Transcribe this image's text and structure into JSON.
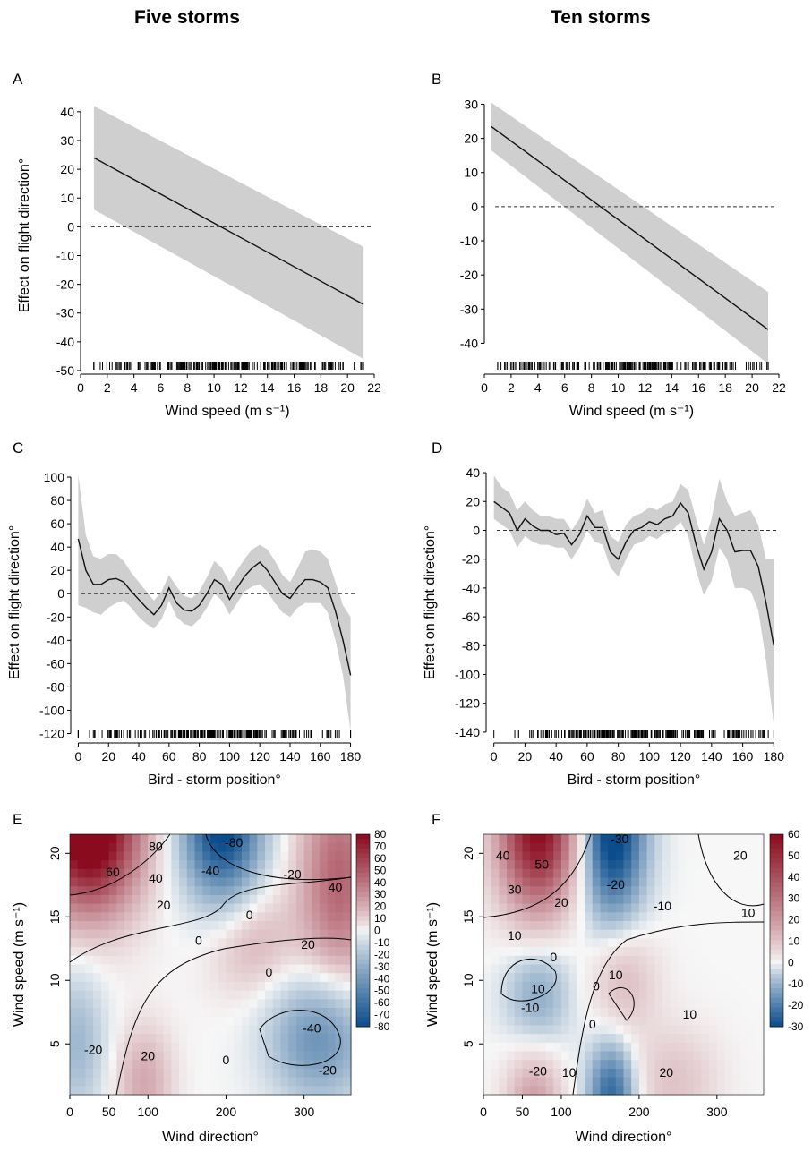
{
  "column_titles": [
    "Five storms",
    "Ten storms"
  ],
  "chart_data": [
    {
      "panel": "A",
      "type": "line",
      "xlabel": "Wind speed  (m s⁻¹)",
      "ylabel": "Effect on flight  direction°",
      "xlim": [
        0,
        22
      ],
      "ylim": [
        -50,
        44
      ],
      "xticks": [
        0,
        2,
        4,
        6,
        8,
        10,
        12,
        14,
        16,
        18,
        20,
        22
      ],
      "yticks": [
        -50,
        -40,
        -30,
        -20,
        -10,
        0,
        10,
        20,
        30,
        40
      ],
      "reference_line": 0,
      "series": [
        {
          "x": [
            1,
            21.2
          ],
          "y": [
            24,
            -27
          ],
          "lower": [
            6,
            -46
          ],
          "upper": [
            42,
            -7
          ]
        }
      ],
      "rug": {
        "range": [
          1,
          21.2
        ]
      }
    },
    {
      "panel": "B",
      "type": "line",
      "xlabel": "Wind speed  (m s⁻¹)",
      "ylabel": "",
      "xlim": [
        0,
        22
      ],
      "ylim": [
        -48,
        33
      ],
      "xticks": [
        0,
        2,
        4,
        6,
        8,
        10,
        12,
        14,
        16,
        18,
        20,
        22
      ],
      "yticks": [
        -40,
        -30,
        -20,
        -10,
        0,
        10,
        20,
        30
      ],
      "reference_line": 0,
      "series": [
        {
          "x": [
            0.5,
            21.2
          ],
          "y": [
            23.5,
            -36
          ],
          "lower": [
            16.5,
            -46
          ],
          "upper": [
            30.5,
            -25
          ]
        }
      ],
      "rug": {
        "range": [
          1,
          21.2
        ]
      }
    },
    {
      "panel": "C",
      "type": "line",
      "xlabel": "Bird - storm  position°",
      "ylabel": "Effect on flight  direction°",
      "xlim": [
        -5,
        185
      ],
      "ylim": [
        -125,
        110
      ],
      "xticks": [
        0,
        20,
        40,
        60,
        80,
        100,
        120,
        140,
        160,
        180
      ],
      "yticks": [
        -120,
        -100,
        -80,
        -60,
        -40,
        -20,
        0,
        20,
        40,
        60,
        80,
        100
      ],
      "reference_line": 0,
      "series": [
        {
          "x": [
            0,
            5,
            10,
            15,
            20,
            25,
            30,
            35,
            40,
            45,
            50,
            55,
            60,
            65,
            70,
            75,
            80,
            85,
            90,
            95,
            100,
            105,
            110,
            115,
            120,
            125,
            130,
            135,
            140,
            145,
            150,
            155,
            160,
            165,
            170,
            175,
            180
          ],
          "y": [
            47,
            20,
            8,
            8,
            12,
            13,
            10,
            2,
            -5,
            -12,
            -18,
            -10,
            5,
            -8,
            -14,
            -15,
            -10,
            0,
            12,
            8,
            -5,
            5,
            15,
            22,
            27,
            20,
            10,
            0,
            -4,
            5,
            12,
            12,
            10,
            5,
            -15,
            -40,
            -70
          ],
          "lower": [
            -10,
            -12,
            -16,
            -18,
            -12,
            -8,
            -6,
            -12,
            -20,
            -26,
            -30,
            -22,
            -6,
            -20,
            -26,
            -28,
            -22,
            -12,
            0,
            -6,
            -18,
            -8,
            2,
            6,
            8,
            2,
            -8,
            -16,
            -20,
            -12,
            -8,
            -8,
            -8,
            -16,
            -40,
            -70,
            -118
          ],
          "upper": [
            102,
            50,
            32,
            30,
            34,
            34,
            28,
            18,
            10,
            2,
            -6,
            2,
            16,
            6,
            -2,
            -4,
            2,
            14,
            28,
            22,
            10,
            20,
            30,
            38,
            42,
            38,
            28,
            16,
            10,
            22,
            36,
            38,
            36,
            30,
            10,
            -10,
            -20
          ]
        }
      ],
      "rug": {
        "range": [
          0,
          180
        ]
      }
    },
    {
      "panel": "D",
      "type": "line",
      "xlabel": "Bird - storm  position°",
      "ylabel": "Effect on flight  direction°",
      "xlim": [
        -5,
        185
      ],
      "ylim": [
        -145,
        45
      ],
      "xticks": [
        0,
        20,
        40,
        60,
        80,
        100,
        120,
        140,
        160,
        180
      ],
      "yticks": [
        -140,
        -120,
        -100,
        -80,
        -60,
        -40,
        -20,
        0,
        20,
        40
      ],
      "reference_line": 0,
      "series": [
        {
          "x": [
            0,
            5,
            10,
            15,
            20,
            25,
            30,
            35,
            40,
            45,
            50,
            55,
            60,
            65,
            70,
            75,
            80,
            85,
            90,
            95,
            100,
            105,
            110,
            115,
            120,
            125,
            130,
            135,
            140,
            145,
            150,
            155,
            160,
            165,
            170,
            175,
            180
          ],
          "y": [
            20,
            16,
            12,
            0,
            8,
            3,
            0,
            0,
            -3,
            -2,
            -10,
            -3,
            10,
            2,
            2,
            -15,
            -20,
            -8,
            0,
            2,
            6,
            4,
            8,
            10,
            19,
            12,
            -10,
            -27,
            -15,
            8,
            0,
            -15,
            -14,
            -14,
            -25,
            -50,
            -80
          ],
          "lower": [
            8,
            4,
            0,
            -12,
            -4,
            -8,
            -10,
            -10,
            -12,
            -12,
            -20,
            -12,
            0,
            -8,
            -10,
            -26,
            -32,
            -20,
            -10,
            -8,
            -4,
            -6,
            -2,
            0,
            6,
            -4,
            -28,
            -45,
            -35,
            -12,
            -20,
            -40,
            -40,
            -42,
            -55,
            -90,
            -135
          ],
          "upper": [
            38,
            30,
            26,
            14,
            20,
            14,
            10,
            10,
            8,
            8,
            0,
            8,
            22,
            12,
            14,
            -4,
            -8,
            4,
            10,
            12,
            16,
            14,
            18,
            20,
            32,
            28,
            8,
            -10,
            8,
            36,
            20,
            10,
            12,
            14,
            4,
            -20,
            -20
          ]
        }
      ],
      "rug": {
        "range": [
          0,
          180
        ]
      }
    },
    {
      "panel": "E",
      "type": "heatmap",
      "xlabel": "Wind direction°",
      "ylabel": "Wind speed  (m s⁻¹)",
      "xlim": [
        0,
        360
      ],
      "ylim": [
        1,
        21.5
      ],
      "xticks": [
        0,
        50,
        100,
        200,
        300
      ],
      "yticks": [
        5,
        10,
        15,
        20
      ],
      "colorbar": {
        "min": -80,
        "max": 80,
        "ticks": [
          80,
          70,
          60,
          50,
          40,
          30,
          20,
          10,
          0,
          -10,
          -20,
          -30,
          -40,
          -50,
          -60,
          -70,
          -80
        ],
        "low_color": "#0b4d8c",
        "mid_color": "#f7f7f7",
        "high_color": "#8a0a1e"
      },
      "contour_labels": [
        "80",
        "60",
        "40",
        "20",
        "0",
        "-80",
        "-40",
        "-20",
        "40",
        "0",
        "20",
        "0",
        "-40",
        "-20",
        "-20",
        "20",
        "0"
      ]
    },
    {
      "panel": "F",
      "type": "heatmap",
      "xlabel": "Wind direction°",
      "ylabel": "Wind speed  (m s⁻¹)",
      "xlim": [
        0,
        360
      ],
      "ylim": [
        1,
        21.5
      ],
      "xticks": [
        0,
        50,
        100,
        200,
        300
      ],
      "yticks": [
        5,
        10,
        15,
        20
      ],
      "colorbar": {
        "min": -30,
        "max": 60,
        "ticks": [
          60,
          50,
          40,
          30,
          20,
          10,
          0,
          -10,
          -20,
          -30
        ],
        "low_color": "#0b4d8c",
        "mid_color": "#f7f7f7",
        "high_color": "#8a0a1e"
      },
      "contour_labels": [
        "40",
        "50",
        "30",
        "20",
        "10",
        "0",
        "-30",
        "-20",
        "-10",
        "20",
        "10",
        "10",
        "-10",
        "0",
        "10",
        "0",
        "10",
        "20",
        "-20",
        "10"
      ]
    }
  ]
}
